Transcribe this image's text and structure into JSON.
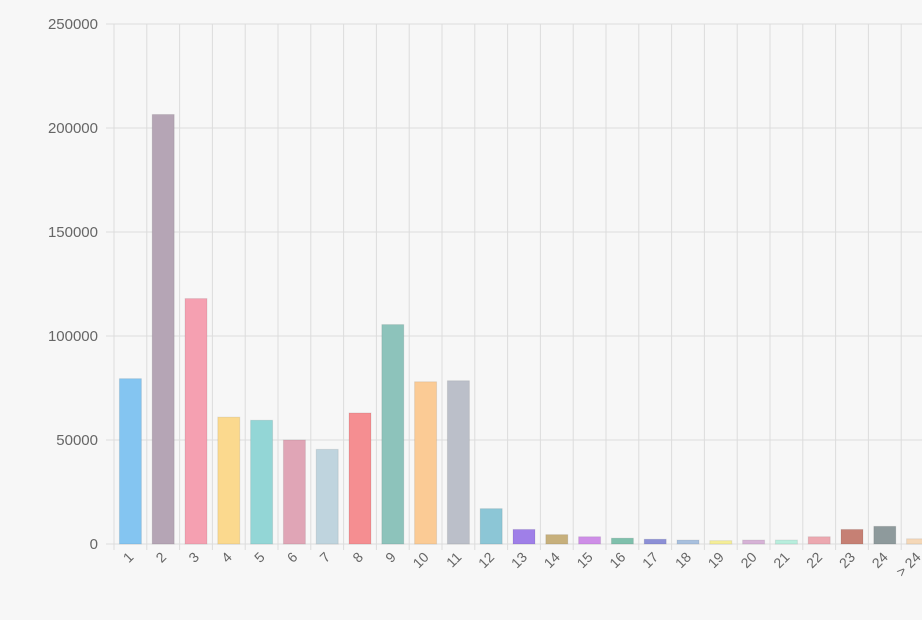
{
  "chart_data": {
    "type": "bar",
    "title": "",
    "xlabel": "",
    "ylabel": "",
    "ylim": [
      0,
      250000
    ],
    "yticks": [
      0,
      50000,
      100000,
      150000,
      200000,
      250000
    ],
    "ytick_labels": [
      "0",
      "50000",
      "100000",
      "150000",
      "200000",
      "250000"
    ],
    "grid": true,
    "legend": "none",
    "categories": [
      "1",
      "2",
      "3",
      "4",
      "5",
      "6",
      "7",
      "8",
      "9",
      "10",
      "11",
      "12",
      "13",
      "14",
      "15",
      "16",
      "17",
      "18",
      "19",
      "20",
      "21",
      "22",
      "23",
      "24",
      "> 24"
    ],
    "values": [
      79500,
      206500,
      118000,
      61000,
      59500,
      50000,
      45500,
      63000,
      105500,
      78000,
      78500,
      17000,
      7000,
      4500,
      3500,
      2800,
      2300,
      1900,
      1600,
      1900,
      1900,
      3500,
      7000,
      8500,
      2500
    ],
    "colors": [
      "#84c5f1",
      "#b5a5b5",
      "#f5a0b1",
      "#fbd98e",
      "#93d6d6",
      "#e0a5b6",
      "#bfd4de",
      "#f58e91",
      "#8dc3bb",
      "#fbcb95",
      "#bbbfc9",
      "#8cc6d6",
      "#9f7fe8",
      "#c7b07c",
      "#ce8ee7",
      "#7fc0ac",
      "#8c8fd6",
      "#a8c0de",
      "#f5ee98",
      "#d6b2d6",
      "#b8eedd",
      "#eca8b0",
      "#c68074",
      "#8e9a9c",
      "#f5d8b8"
    ]
  }
}
